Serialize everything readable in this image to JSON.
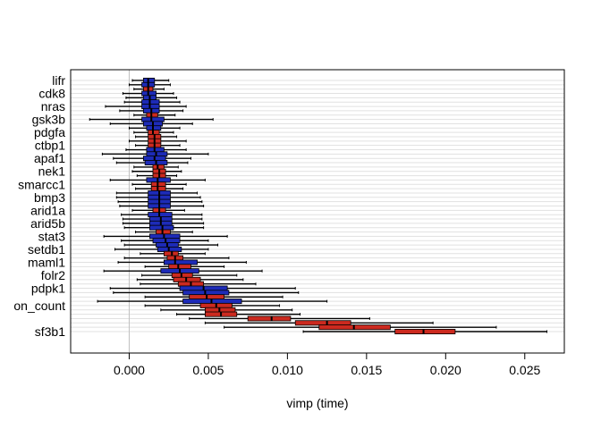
{
  "chart_data": {
    "type": "boxplot",
    "orientation": "horizontal",
    "xlabel": "vimp (time)",
    "xlim": [
      -0.0037,
      0.0275
    ],
    "x_ticks": [
      "0.000",
      "0.005",
      "0.010",
      "0.015",
      "0.020",
      "0.025"
    ],
    "x_tick_values": [
      0,
      0.005,
      0.01,
      0.015,
      0.02,
      0.025
    ],
    "reference_line_x": 0,
    "grid": "horizontal light gray lines",
    "y_tick_labels_shown": [
      "lifr",
      "cdk8",
      "nras",
      "gsk3b",
      "pdgfa",
      "ctbp1",
      "apaf1",
      "nek1",
      "smarcc1",
      "bmp3",
      "arid1a",
      "arid5b",
      "stat3",
      "setdb1",
      "maml1",
      "folr2",
      "pdpk1",
      "on_count",
      "sf3b1"
    ],
    "colors": {
      "red_box": "#cc2a1f",
      "blue_box": "#1d2bb8",
      "axis": "#000000",
      "grid": "#e1e1e1",
      "ref_line": "#c0c0c0"
    },
    "boxes": [
      {
        "label": "lifr",
        "color": "blue",
        "whisker_low": 0.0002,
        "q1": 0.0009,
        "median": 0.0012,
        "q3": 0.0016,
        "whisker_high": 0.0025
      },
      {
        "label": "",
        "color": "blue",
        "whisker_low": 0.0,
        "q1": 0.0008,
        "median": 0.0012,
        "q3": 0.0016,
        "whisker_high": 0.0026
      },
      {
        "label": "",
        "color": "red",
        "whisker_low": 0.0003,
        "q1": 0.0009,
        "median": 0.0012,
        "q3": 0.0015,
        "whisker_high": 0.0022
      },
      {
        "label": "cdk8",
        "color": "blue",
        "whisker_low": -0.0004,
        "q1": 0.0008,
        "median": 0.0012,
        "q3": 0.0017,
        "whisker_high": 0.0028
      },
      {
        "label": "",
        "color": "blue",
        "whisker_low": -0.0002,
        "q1": 0.0009,
        "median": 0.0013,
        "q3": 0.0017,
        "whisker_high": 0.003
      },
      {
        "label": "",
        "color": "blue",
        "whisker_low": -0.0003,
        "q1": 0.0008,
        "median": 0.0013,
        "q3": 0.0019,
        "whisker_high": 0.0032
      },
      {
        "label": "nras",
        "color": "blue",
        "whisker_low": -0.0015,
        "q1": 0.0008,
        "median": 0.0013,
        "q3": 0.0019,
        "whisker_high": 0.0036
      },
      {
        "label": "",
        "color": "blue",
        "whisker_low": -0.0006,
        "q1": 0.0009,
        "median": 0.0014,
        "q3": 0.0019,
        "whisker_high": 0.0034
      },
      {
        "label": "",
        "color": "red",
        "whisker_low": 0.0003,
        "q1": 0.0011,
        "median": 0.0014,
        "q3": 0.0018,
        "whisker_high": 0.0029
      },
      {
        "label": "gsk3b",
        "color": "blue",
        "whisker_low": -0.0025,
        "q1": 0.0008,
        "median": 0.0014,
        "q3": 0.0022,
        "whisker_high": 0.0053
      },
      {
        "label": "",
        "color": "blue",
        "whisker_low": -0.0012,
        "q1": 0.0009,
        "median": 0.0015,
        "q3": 0.0021,
        "whisker_high": 0.004
      },
      {
        "label": "",
        "color": "blue",
        "whisker_low": 0.0,
        "q1": 0.0011,
        "median": 0.0015,
        "q3": 0.002,
        "whisker_high": 0.0032
      },
      {
        "label": "pdgfa",
        "color": "red",
        "whisker_low": 0.0003,
        "q1": 0.0012,
        "median": 0.0015,
        "q3": 0.0019,
        "whisker_high": 0.0028
      },
      {
        "label": "",
        "color": "red",
        "whisker_low": 0.0004,
        "q1": 0.0012,
        "median": 0.0016,
        "q3": 0.002,
        "whisker_high": 0.003
      },
      {
        "label": "",
        "color": "red",
        "whisker_low": 0.0,
        "q1": 0.0012,
        "median": 0.0016,
        "q3": 0.002,
        "whisker_high": 0.0036
      },
      {
        "label": "ctbp1",
        "color": "red",
        "whisker_low": 0.0004,
        "q1": 0.0012,
        "median": 0.0016,
        "q3": 0.002,
        "whisker_high": 0.0032
      },
      {
        "label": "",
        "color": "blue",
        "whisker_low": -0.0002,
        "q1": 0.0011,
        "median": 0.0016,
        "q3": 0.0022,
        "whisker_high": 0.0036
      },
      {
        "label": "",
        "color": "blue",
        "whisker_low": -0.0017,
        "q1": 0.0011,
        "median": 0.0017,
        "q3": 0.0024,
        "whisker_high": 0.005
      },
      {
        "label": "apaf1",
        "color": "blue",
        "whisker_low": -0.001,
        "q1": 0.0009,
        "median": 0.0016,
        "q3": 0.0023,
        "whisker_high": 0.0039
      },
      {
        "label": "",
        "color": "blue",
        "whisker_low": -0.0008,
        "q1": 0.001,
        "median": 0.0017,
        "q3": 0.0024,
        "whisker_high": 0.0037
      },
      {
        "label": "",
        "color": "red",
        "whisker_low": 0.0003,
        "q1": 0.0015,
        "median": 0.0018,
        "q3": 0.0022,
        "whisker_high": 0.0031
      },
      {
        "label": "nek1",
        "color": "red",
        "whisker_low": 0.0002,
        "q1": 0.0015,
        "median": 0.0019,
        "q3": 0.0023,
        "whisker_high": 0.0033
      },
      {
        "label": "",
        "color": "red",
        "whisker_low": 0.0005,
        "q1": 0.0015,
        "median": 0.0019,
        "q3": 0.0023,
        "whisker_high": 0.003
      },
      {
        "label": "",
        "color": "blue",
        "whisker_low": -0.0012,
        "q1": 0.0011,
        "median": 0.0018,
        "q3": 0.0026,
        "whisker_high": 0.0048
      },
      {
        "label": "smarcc1",
        "color": "red",
        "whisker_low": 0.0002,
        "q1": 0.0014,
        "median": 0.0018,
        "q3": 0.0023,
        "whisker_high": 0.0036
      },
      {
        "label": "",
        "color": "red",
        "whisker_low": 0.0004,
        "q1": 0.0014,
        "median": 0.0018,
        "q3": 0.0023,
        "whisker_high": 0.0034
      },
      {
        "label": "",
        "color": "blue",
        "whisker_low": -0.0008,
        "q1": 0.0012,
        "median": 0.0019,
        "q3": 0.0026,
        "whisker_high": 0.0043
      },
      {
        "label": "bmp3",
        "color": "blue",
        "whisker_low": -0.0008,
        "q1": 0.0012,
        "median": 0.0019,
        "q3": 0.0026,
        "whisker_high": 0.0045
      },
      {
        "label": "",
        "color": "blue",
        "whisker_low": -0.0007,
        "q1": 0.0012,
        "median": 0.0019,
        "q3": 0.0026,
        "whisker_high": 0.0046
      },
      {
        "label": "",
        "color": "blue",
        "whisker_low": -0.0006,
        "q1": 0.0012,
        "median": 0.0019,
        "q3": 0.0026,
        "whisker_high": 0.0047
      },
      {
        "label": "arid1a",
        "color": "red",
        "whisker_low": 0.0002,
        "q1": 0.0015,
        "median": 0.0019,
        "q3": 0.0023,
        "whisker_high": 0.0035
      },
      {
        "label": "",
        "color": "blue",
        "whisker_low": -0.0005,
        "q1": 0.0012,
        "median": 0.0019,
        "q3": 0.0027,
        "whisker_high": 0.0046
      },
      {
        "label": "",
        "color": "blue",
        "whisker_low": -0.0004,
        "q1": 0.0013,
        "median": 0.002,
        "q3": 0.0027,
        "whisker_high": 0.0046
      },
      {
        "label": "arid5b",
        "color": "blue",
        "whisker_low": -0.0004,
        "q1": 0.0013,
        "median": 0.002,
        "q3": 0.0027,
        "whisker_high": 0.0047
      },
      {
        "label": "",
        "color": "blue",
        "whisker_low": -0.0003,
        "q1": 0.0013,
        "median": 0.0021,
        "q3": 0.0028,
        "whisker_high": 0.0047
      },
      {
        "label": "",
        "color": "red",
        "whisker_low": 0.0004,
        "q1": 0.0017,
        "median": 0.0021,
        "q3": 0.0026,
        "whisker_high": 0.004
      },
      {
        "label": "stat3",
        "color": "blue",
        "whisker_low": -0.0016,
        "q1": 0.0013,
        "median": 0.0022,
        "q3": 0.0032,
        "whisker_high": 0.0062
      },
      {
        "label": "",
        "color": "blue",
        "whisker_low": -0.0005,
        "q1": 0.0015,
        "median": 0.0023,
        "q3": 0.0032,
        "whisker_high": 0.005
      },
      {
        "label": "",
        "color": "blue",
        "whisker_low": -0.0003,
        "q1": 0.0017,
        "median": 0.0024,
        "q3": 0.0031,
        "whisker_high": 0.0056
      },
      {
        "label": "setdb1",
        "color": "blue",
        "whisker_low": -0.0009,
        "q1": 0.0018,
        "median": 0.0025,
        "q3": 0.0033,
        "whisker_high": 0.005
      },
      {
        "label": "",
        "color": "red",
        "whisker_low": 0.0007,
        "q1": 0.0022,
        "median": 0.0027,
        "q3": 0.0031,
        "whisker_high": 0.0048
      },
      {
        "label": "",
        "color": "red",
        "whisker_low": -0.0003,
        "q1": 0.0024,
        "median": 0.0029,
        "q3": 0.0034,
        "whisker_high": 0.0063
      },
      {
        "label": "maml1",
        "color": "blue",
        "whisker_low": -0.0007,
        "q1": 0.0022,
        "median": 0.0029,
        "q3": 0.0043,
        "whisker_high": 0.0074
      },
      {
        "label": "",
        "color": "red",
        "whisker_low": 0.001,
        "q1": 0.0025,
        "median": 0.0031,
        "q3": 0.0039,
        "whisker_high": 0.006
      },
      {
        "label": "",
        "color": "blue",
        "whisker_low": -0.0016,
        "q1": 0.002,
        "median": 0.0032,
        "q3": 0.0044,
        "whisker_high": 0.0084
      },
      {
        "label": "folr2",
        "color": "red",
        "whisker_low": 0.0008,
        "q1": 0.0027,
        "median": 0.0033,
        "q3": 0.004,
        "whisker_high": 0.0068
      },
      {
        "label": "",
        "color": "red",
        "whisker_low": 0.0005,
        "q1": 0.0028,
        "median": 0.0036,
        "q3": 0.0045,
        "whisker_high": 0.0072
      },
      {
        "label": "",
        "color": "red",
        "whisker_low": 0.0007,
        "q1": 0.0031,
        "median": 0.0039,
        "q3": 0.0047,
        "whisker_high": 0.008
      },
      {
        "label": "pdpk1",
        "color": "blue",
        "whisker_low": -0.0012,
        "q1": 0.0032,
        "median": 0.0047,
        "q3": 0.0062,
        "whisker_high": 0.0105
      },
      {
        "label": "",
        "color": "blue",
        "whisker_low": -0.001,
        "q1": 0.0034,
        "median": 0.0048,
        "q3": 0.0063,
        "whisker_high": 0.0107
      },
      {
        "label": "",
        "color": "red",
        "whisker_low": 0.001,
        "q1": 0.0038,
        "median": 0.0049,
        "q3": 0.006,
        "whisker_high": 0.0097
      },
      {
        "label": "",
        "color": "blue",
        "whisker_low": -0.002,
        "q1": 0.0034,
        "median": 0.0052,
        "q3": 0.0071,
        "whisker_high": 0.0125
      },
      {
        "label": "on_count",
        "color": "red",
        "whisker_low": 0.001,
        "q1": 0.0045,
        "median": 0.0055,
        "q3": 0.0065,
        "whisker_high": 0.0095
      },
      {
        "label": "",
        "color": "red",
        "whisker_low": 0.002,
        "q1": 0.0048,
        "median": 0.0057,
        "q3": 0.0067,
        "whisker_high": 0.0103
      },
      {
        "label": "",
        "color": "red",
        "whisker_low": 0.003,
        "q1": 0.0048,
        "median": 0.0058,
        "q3": 0.0068,
        "whisker_high": 0.0108
      },
      {
        "label": "",
        "color": "red",
        "whisker_low": 0.0038,
        "q1": 0.0075,
        "median": 0.009,
        "q3": 0.0102,
        "whisker_high": 0.0152
      },
      {
        "label": "",
        "color": "red",
        "whisker_low": 0.0048,
        "q1": 0.0105,
        "median": 0.0125,
        "q3": 0.014,
        "whisker_high": 0.0192
      },
      {
        "label": "",
        "color": "red",
        "whisker_low": 0.006,
        "q1": 0.012,
        "median": 0.0142,
        "q3": 0.0165,
        "whisker_high": 0.0232
      },
      {
        "label": "sf3b1",
        "color": "red",
        "whisker_low": 0.011,
        "q1": 0.0168,
        "median": 0.0186,
        "q3": 0.0206,
        "whisker_high": 0.0264
      }
    ]
  }
}
